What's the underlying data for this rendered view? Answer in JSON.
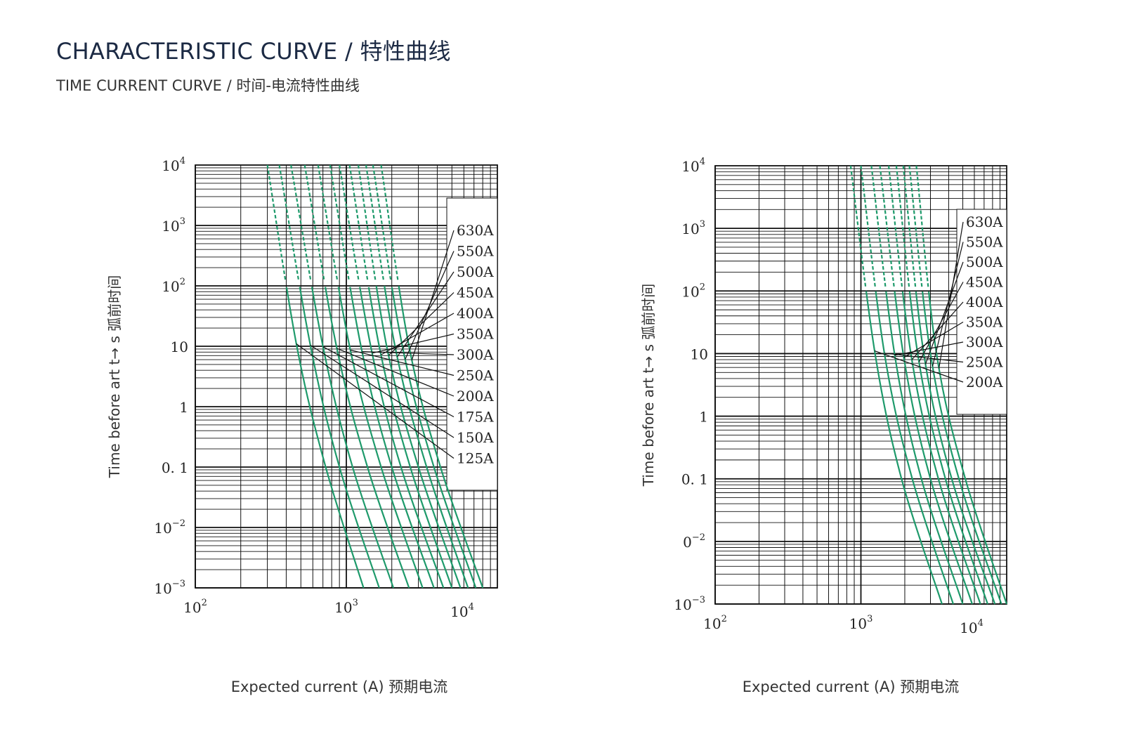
{
  "header": {
    "title": "CHARACTERISTIC CURVE / 特性曲线",
    "subtitle": "TIME CURRENT CURVE / 时间-电流特性曲线"
  },
  "colors": {
    "curve": "#1e9a6b",
    "grid": "#111111"
  },
  "chart_data": [
    {
      "type": "line",
      "xscale": "log",
      "yscale": "log",
      "xlim": [
        100,
        10000
      ],
      "ylim": [
        0.001,
        10000
      ],
      "xticks": [
        {
          "base": "10",
          "exp": "2"
        },
        {
          "base": "10",
          "exp": "3"
        },
        {
          "base": "10",
          "exp": "4"
        }
      ],
      "yticks": [
        {
          "base": "10",
          "exp": "4"
        },
        {
          "base": "10",
          "exp": "3"
        },
        {
          "base": "10",
          "exp": "2"
        },
        {
          "base": "10",
          "exp": ""
        },
        {
          "base": "1",
          "exp": ""
        },
        {
          "base": "0. 1",
          "exp": ""
        },
        {
          "base": "10",
          "exp": "−2"
        },
        {
          "base": "10",
          "exp": "−3"
        }
      ],
      "ylabel": "Time before art   t→ s  弧前时间",
      "xlabel": "Expected current (A)  预期电流",
      "series": [
        {
          "name": "630A",
          "x": [
            1700,
            2600,
            4200,
            8000
          ],
          "y": [
            10000,
            10,
            0.1,
            0.001
          ]
        },
        {
          "name": "550A",
          "x": [
            1500,
            2350,
            3800,
            7200
          ],
          "y": [
            10000,
            10,
            0.1,
            0.001
          ]
        },
        {
          "name": "500A",
          "x": [
            1350,
            2100,
            3400,
            6400
          ],
          "y": [
            10000,
            10,
            0.1,
            0.001
          ]
        },
        {
          "name": "450A",
          "x": [
            1200,
            1850,
            3000,
            5700
          ],
          "y": [
            10000,
            10,
            0.1,
            0.001
          ]
        },
        {
          "name": "400A",
          "x": [
            1050,
            1650,
            2650,
            5000
          ],
          "y": [
            10000,
            10,
            0.1,
            0.001
          ]
        },
        {
          "name": "350A",
          "x": [
            900,
            1450,
            2300,
            4400
          ],
          "y": [
            10000,
            10,
            0.1,
            0.001
          ]
        },
        {
          "name": "300A",
          "x": [
            780,
            1250,
            2000,
            3800
          ],
          "y": [
            10000,
            10,
            0.1,
            0.001
          ]
        },
        {
          "name": "250A",
          "x": [
            650,
            1050,
            1700,
            3200
          ],
          "y": [
            10000,
            10,
            0.1,
            0.001
          ]
        },
        {
          "name": "200A",
          "x": [
            530,
            860,
            1380,
            2600
          ],
          "y": [
            10000,
            10,
            0.1,
            0.001
          ]
        },
        {
          "name": "175A",
          "x": [
            430,
            700,
            1100,
            2050
          ],
          "y": [
            10000,
            10,
            0.1,
            0.001
          ]
        },
        {
          "name": "150A",
          "x": [
            360,
            580,
            900,
            1650
          ],
          "y": [
            10000,
            10,
            0.1,
            0.001
          ]
        },
        {
          "name": "125A",
          "x": [
            300,
            470,
            730,
            1300
          ],
          "y": [
            10000,
            10,
            0.1,
            0.001
          ]
        }
      ]
    },
    {
      "type": "line",
      "xscale": "log",
      "yscale": "log",
      "xlim": [
        100,
        10000
      ],
      "ylim": [
        0.001,
        10000
      ],
      "xticks": [
        {
          "base": "10",
          "exp": "2"
        },
        {
          "base": "10",
          "exp": "3"
        },
        {
          "base": "10",
          "exp": "4"
        }
      ],
      "yticks": [
        {
          "base": "10",
          "exp": "4"
        },
        {
          "base": "10",
          "exp": "3"
        },
        {
          "base": "10",
          "exp": "2"
        },
        {
          "base": "10",
          "exp": ""
        },
        {
          "base": "1",
          "exp": ""
        },
        {
          "base": "0. 1",
          "exp": ""
        },
        {
          "base": "0",
          "exp": "−2"
        },
        {
          "base": "10",
          "exp": "−3"
        }
      ],
      "ylabel": "Time before art   t→ s  弧前时间",
      "xlabel": "Expected current (A)  预期电流",
      "series": [
        {
          "name": "630A",
          "x": [
            2400,
            3300,
            5200,
            10000
          ],
          "y": [
            10000,
            10,
            0.1,
            0.001
          ]
        },
        {
          "name": "550A",
          "x": [
            2150,
            3000,
            4700,
            9200
          ],
          "y": [
            10000,
            10,
            0.1,
            0.001
          ]
        },
        {
          "name": "500A",
          "x": [
            1950,
            2700,
            4200,
            8300
          ],
          "y": [
            10000,
            10,
            0.1,
            0.001
          ]
        },
        {
          "name": "450A",
          "x": [
            1750,
            2450,
            3800,
            7400
          ],
          "y": [
            10000,
            10,
            0.1,
            0.001
          ]
        },
        {
          "name": "400A",
          "x": [
            1550,
            2200,
            3400,
            6600
          ],
          "y": [
            10000,
            10,
            0.1,
            0.001
          ]
        },
        {
          "name": "350A",
          "x": [
            1350,
            1950,
            3000,
            5800
          ],
          "y": [
            10000,
            10,
            0.1,
            0.001
          ]
        },
        {
          "name": "300A",
          "x": [
            1180,
            1700,
            2600,
            5000
          ],
          "y": [
            10000,
            10,
            0.1,
            0.001
          ]
        },
        {
          "name": "250A",
          "x": [
            1000,
            1450,
            2250,
            4300
          ],
          "y": [
            10000,
            10,
            0.1,
            0.001
          ]
        },
        {
          "name": "200A",
          "x": [
            850,
            1250,
            1900,
            3600
          ],
          "y": [
            10000,
            10,
            0.1,
            0.001
          ]
        }
      ]
    }
  ]
}
